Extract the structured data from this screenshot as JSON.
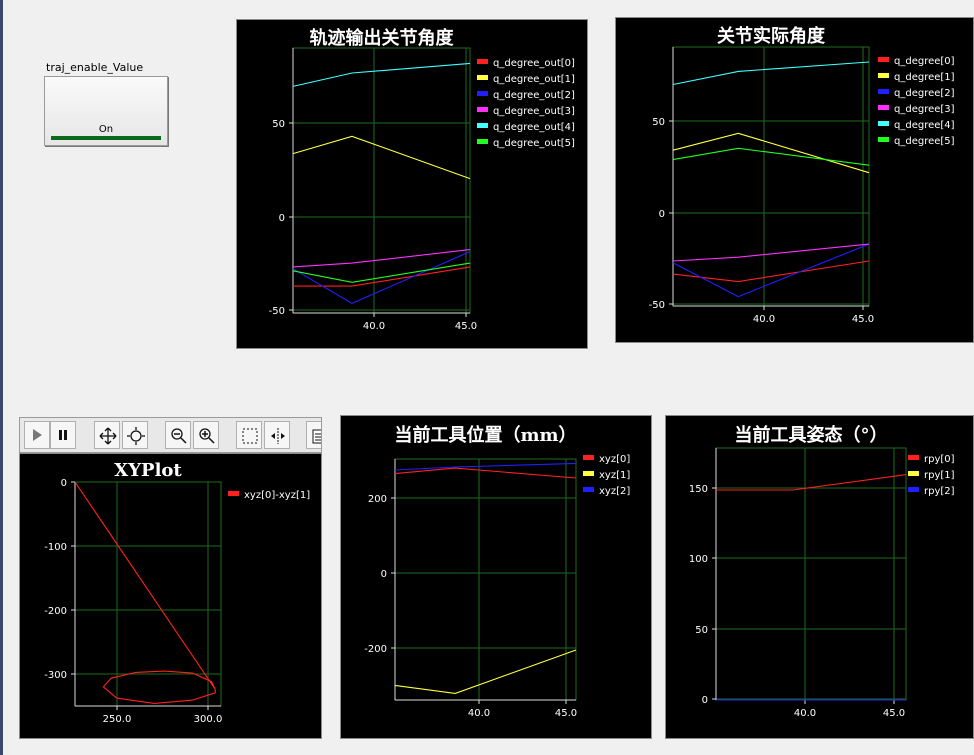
{
  "bool_control": {
    "label": "traj_enable_Value",
    "state": "On"
  },
  "toolbar": {
    "buttons": [
      "play-icon",
      "pause-icon",
      "pan-icon",
      "zoom-fit-icon",
      "zoom-out-icon",
      "zoom-in-icon",
      "select-region-icon",
      "cursor-icon",
      "properties-icon"
    ]
  },
  "chart_data": [
    {
      "type": "line",
      "title": "轨迹输出关节角度",
      "x": [
        35.5,
        38.8,
        45.4
      ],
      "xticks": [
        "40.0",
        "45.0"
      ],
      "yticks": [
        "50",
        "0",
        "-50"
      ],
      "xlim": [
        35.5,
        45.4
      ],
      "ylim": [
        -50,
        88
      ],
      "series": [
        {
          "name": "q_degree_out[0]",
          "color": "#ff2020",
          "values": [
            -36,
            -36,
            -26
          ]
        },
        {
          "name": "q_degree_out[1]",
          "color": "#ffff40",
          "values": [
            33,
            42,
            20
          ]
        },
        {
          "name": "q_degree_out[2]",
          "color": "#2020ff",
          "values": [
            -27,
            -45,
            -18
          ]
        },
        {
          "name": "q_degree_out[3]",
          "color": "#ff30ff",
          "values": [
            -26,
            -24,
            -17
          ]
        },
        {
          "name": "q_degree_out[4]",
          "color": "#40ffff",
          "values": [
            68,
            75,
            80
          ]
        },
        {
          "name": "q_degree_out[5]",
          "color": "#20ff20",
          "values": [
            -28,
            -34,
            -24
          ]
        }
      ]
    },
    {
      "type": "line",
      "title": "关节实际角度",
      "x": [
        35.5,
        38.8,
        45.4
      ],
      "xticks": [
        "40.0",
        "45.0"
      ],
      "yticks": [
        "50",
        "0",
        "-50"
      ],
      "xlim": [
        35.5,
        45.4
      ],
      "ylim": [
        -50,
        88
      ],
      "series": [
        {
          "name": "q_degree[0]",
          "color": "#ff2020",
          "values": [
            -33,
            -37,
            -26
          ]
        },
        {
          "name": "q_degree[1]",
          "color": "#ffff40",
          "values": [
            33,
            42,
            21
          ]
        },
        {
          "name": "q_degree[2]",
          "color": "#2020ff",
          "values": [
            -27,
            -45,
            -17
          ]
        },
        {
          "name": "q_degree[3]",
          "color": "#ff30ff",
          "values": [
            -26,
            -24,
            -17
          ]
        },
        {
          "name": "q_degree[4]",
          "color": "#40ffff",
          "values": [
            68,
            75,
            80
          ]
        },
        {
          "name": "q_degree[5]",
          "color": "#20ff20",
          "values": [
            28,
            34,
            25
          ]
        }
      ]
    },
    {
      "type": "scatter",
      "title": "XYPlot",
      "xticks": [
        "250.0",
        "300.0"
      ],
      "yticks": [
        "0",
        "-100",
        "-200",
        "-300"
      ],
      "xlim": [
        228,
        305
      ],
      "ylim": [
        -340,
        0
      ],
      "series": [
        {
          "name": "xyz[0]-xyz[1]",
          "color": "#ff2020",
          "x": [
            228,
            302,
            300,
            290,
            275,
            260,
            247,
            243,
            250,
            270,
            290,
            302,
            302
          ],
          "y": [
            0,
            -315,
            -303,
            -290,
            -287,
            -289,
            -298,
            -311,
            -328,
            -336,
            -331,
            -320,
            -315
          ]
        }
      ]
    },
    {
      "type": "line",
      "title": "当前工具位置（mm）",
      "x": [
        35.5,
        38.8,
        45.4
      ],
      "xticks": [
        "40.0",
        "45.0"
      ],
      "yticks": [
        "200",
        "0",
        "-200"
      ],
      "xlim": [
        35.5,
        45.4
      ],
      "ylim": [
        -330,
        330
      ],
      "series": [
        {
          "name": "xyz[0]",
          "color": "#ff2020",
          "values": [
            290,
            305,
            278
          ]
        },
        {
          "name": "xyz[1]",
          "color": "#ffff40",
          "values": [
            -290,
            -312,
            -193
          ]
        },
        {
          "name": "xyz[2]",
          "color": "#2020ff",
          "values": [
            300,
            308,
            318
          ]
        }
      ]
    },
    {
      "type": "line",
      "title": "当前工具姿态（°）",
      "x": [
        35.5,
        39.5,
        45.4
      ],
      "xticks": [
        "40.0",
        "45.0"
      ],
      "yticks": [
        "150",
        "100",
        "50",
        "0"
      ],
      "xlim": [
        35.5,
        45.4
      ],
      "ylim": [
        0,
        180
      ],
      "series": [
        {
          "name": "rpy[0]",
          "color": "#ff2020",
          "values": [
            150,
            150,
            161
          ]
        },
        {
          "name": "rpy[1]",
          "color": "#ffff40",
          "values": [
            0,
            0,
            0
          ]
        },
        {
          "name": "rpy[2]",
          "color": "#2020ff",
          "values": [
            0,
            0,
            0
          ]
        }
      ]
    }
  ]
}
